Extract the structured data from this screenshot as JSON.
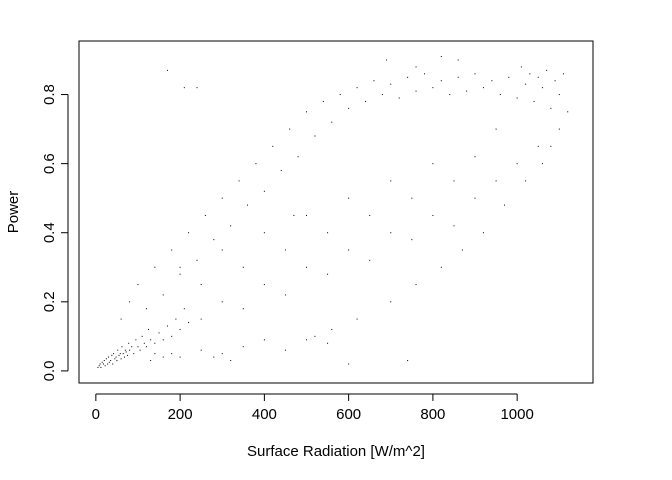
{
  "chart_data": {
    "type": "scatter",
    "title": "",
    "xlabel": "Surface Radiation [W/m^2]",
    "ylabel": "Power",
    "xlim": [
      -40,
      1180
    ],
    "ylim": [
      -0.035,
      0.955
    ],
    "xticks": [
      0,
      200,
      400,
      600,
      800,
      1000
    ],
    "yticks": [
      0.0,
      0.2,
      0.4,
      0.6,
      0.8
    ],
    "xtick_labels": [
      "0",
      "200",
      "400",
      "600",
      "800",
      "1000"
    ],
    "ytick_labels": [
      "0.0",
      "0.2",
      "0.4",
      "0.6",
      "0.8"
    ],
    "grid": false,
    "legend": "none",
    "marker": "pixel-dot",
    "point_color": "#000000",
    "series": [
      {
        "points": [
          [
            5,
            0.01
          ],
          [
            8,
            0.015
          ],
          [
            10,
            0.02
          ],
          [
            12,
            0.01
          ],
          [
            15,
            0.025
          ],
          [
            18,
            0.02
          ],
          [
            20,
            0.03
          ],
          [
            22,
            0.015
          ],
          [
            25,
            0.035
          ],
          [
            28,
            0.02
          ],
          [
            30,
            0.04
          ],
          [
            32,
            0.025
          ],
          [
            35,
            0.03
          ],
          [
            38,
            0.045
          ],
          [
            40,
            0.02
          ],
          [
            42,
            0.05
          ],
          [
            45,
            0.035
          ],
          [
            48,
            0.04
          ],
          [
            50,
            0.03
          ],
          [
            52,
            0.06
          ],
          [
            55,
            0.045
          ],
          [
            58,
            0.05
          ],
          [
            60,
            0.035
          ],
          [
            62,
            0.07
          ],
          [
            65,
            0.05
          ],
          [
            68,
            0.04
          ],
          [
            70,
            0.06
          ],
          [
            72,
            0.055
          ],
          [
            75,
            0.045
          ],
          [
            78,
            0.08
          ],
          [
            80,
            0.06
          ],
          [
            85,
            0.07
          ],
          [
            90,
            0.05
          ],
          [
            95,
            0.09
          ],
          [
            100,
            0.07
          ],
          [
            105,
            0.06
          ],
          [
            110,
            0.1
          ],
          [
            115,
            0.08
          ],
          [
            120,
            0.07
          ],
          [
            125,
            0.12
          ],
          [
            130,
            0.09
          ],
          [
            140,
            0.08
          ],
          [
            150,
            0.11
          ],
          [
            160,
            0.09
          ],
          [
            170,
            0.13
          ],
          [
            180,
            0.1
          ],
          [
            190,
            0.15
          ],
          [
            200,
            0.12
          ],
          [
            210,
            0.18
          ],
          [
            220,
            0.14
          ],
          [
            60,
            0.15
          ],
          [
            80,
            0.2
          ],
          [
            100,
            0.25
          ],
          [
            120,
            0.18
          ],
          [
            140,
            0.3
          ],
          [
            160,
            0.22
          ],
          [
            180,
            0.35
          ],
          [
            200,
            0.28
          ],
          [
            220,
            0.4
          ],
          [
            240,
            0.32
          ],
          [
            260,
            0.45
          ],
          [
            280,
            0.38
          ],
          [
            300,
            0.5
          ],
          [
            320,
            0.42
          ],
          [
            340,
            0.55
          ],
          [
            360,
            0.48
          ],
          [
            380,
            0.6
          ],
          [
            400,
            0.52
          ],
          [
            420,
            0.65
          ],
          [
            440,
            0.58
          ],
          [
            460,
            0.7
          ],
          [
            480,
            0.62
          ],
          [
            500,
            0.75
          ],
          [
            520,
            0.68
          ],
          [
            540,
            0.78
          ],
          [
            560,
            0.72
          ],
          [
            580,
            0.8
          ],
          [
            600,
            0.76
          ],
          [
            620,
            0.82
          ],
          [
            640,
            0.78
          ],
          [
            660,
            0.84
          ],
          [
            680,
            0.8
          ],
          [
            700,
            0.83
          ],
          [
            720,
            0.79
          ],
          [
            740,
            0.85
          ],
          [
            760,
            0.81
          ],
          [
            780,
            0.86
          ],
          [
            800,
            0.82
          ],
          [
            820,
            0.84
          ],
          [
            840,
            0.8
          ],
          [
            860,
            0.85
          ],
          [
            880,
            0.81
          ],
          [
            900,
            0.86
          ],
          [
            920,
            0.82
          ],
          [
            940,
            0.84
          ],
          [
            960,
            0.8
          ],
          [
            980,
            0.85
          ],
          [
            1000,
            0.79
          ],
          [
            1020,
            0.83
          ],
          [
            1040,
            0.78
          ],
          [
            1060,
            0.82
          ],
          [
            1080,
            0.76
          ],
          [
            1100,
            0.8
          ],
          [
            1120,
            0.75
          ],
          [
            1110,
            0.86
          ],
          [
            1090,
            0.84
          ],
          [
            1070,
            0.87
          ],
          [
            1050,
            0.85
          ],
          [
            1030,
            0.86
          ],
          [
            1010,
            0.88
          ],
          [
            250,
            0.15
          ],
          [
            300,
            0.2
          ],
          [
            350,
            0.18
          ],
          [
            400,
            0.25
          ],
          [
            450,
            0.22
          ],
          [
            500,
            0.3
          ],
          [
            550,
            0.28
          ],
          [
            600,
            0.35
          ],
          [
            650,
            0.32
          ],
          [
            700,
            0.4
          ],
          [
            750,
            0.38
          ],
          [
            800,
            0.45
          ],
          [
            850,
            0.42
          ],
          [
            900,
            0.5
          ],
          [
            950,
            0.55
          ],
          [
            1000,
            0.6
          ],
          [
            1050,
            0.65
          ],
          [
            1100,
            0.7
          ],
          [
            500,
            0.09
          ],
          [
            550,
            0.08
          ],
          [
            300,
            0.05
          ],
          [
            350,
            0.07
          ],
          [
            400,
            0.09
          ],
          [
            450,
            0.06
          ],
          [
            520,
            0.1
          ],
          [
            560,
            0.12
          ],
          [
            620,
            0.15
          ],
          [
            700,
            0.2
          ],
          [
            760,
            0.25
          ],
          [
            820,
            0.3
          ],
          [
            870,
            0.35
          ],
          [
            920,
            0.4
          ],
          [
            970,
            0.48
          ],
          [
            1020,
            0.55
          ],
          [
            1060,
            0.6
          ],
          [
            1080,
            0.65
          ],
          [
            950,
            0.7
          ],
          [
            900,
            0.62
          ],
          [
            850,
            0.55
          ],
          [
            800,
            0.6
          ],
          [
            750,
            0.5
          ],
          [
            700,
            0.55
          ],
          [
            650,
            0.45
          ],
          [
            600,
            0.5
          ],
          [
            550,
            0.4
          ],
          [
            500,
            0.45
          ],
          [
            450,
            0.35
          ],
          [
            400,
            0.4
          ],
          [
            350,
            0.3
          ],
          [
            300,
            0.35
          ],
          [
            250,
            0.25
          ],
          [
            200,
            0.3
          ],
          [
            180,
            0.05
          ],
          [
            160,
            0.04
          ],
          [
            140,
            0.05
          ],
          [
            130,
            0.03
          ],
          [
            200,
            0.04
          ],
          [
            250,
            0.06
          ],
          [
            280,
            0.04
          ],
          [
            320,
            0.03
          ],
          [
            240,
            0.82
          ],
          [
            210,
            0.82
          ],
          [
            170,
            0.87
          ],
          [
            690,
            0.9
          ],
          [
            760,
            0.88
          ],
          [
            820,
            0.91
          ],
          [
            860,
            0.9
          ],
          [
            740,
            0.03
          ],
          [
            600,
            0.02
          ],
          [
            470,
            0.45
          ]
        ]
      }
    ]
  }
}
